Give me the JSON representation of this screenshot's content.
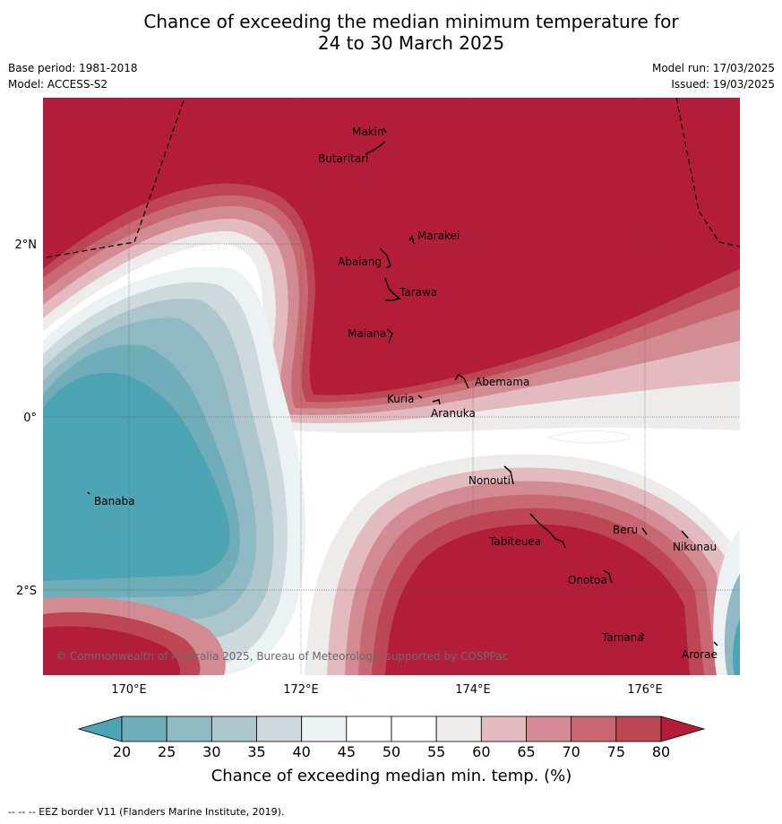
{
  "title_line1": "Chance of exceeding the median minimum temperature for",
  "title_line2": "24 to 30 March 2025",
  "meta_left": {
    "base_period": "Base period: 1981-2018",
    "model": "Model: ACCESS-S2"
  },
  "meta_right": {
    "model_run": "Model run: 17/03/2025",
    "issued": "Issued: 19/03/2025"
  },
  "axes": {
    "lat_labels": [
      "2°N",
      "0°",
      "2°S"
    ],
    "lon_labels": [
      "170°E",
      "172°E",
      "174°E",
      "176°E"
    ]
  },
  "islands": [
    {
      "name": "Makin"
    },
    {
      "name": "Butaritari"
    },
    {
      "name": "Marakei"
    },
    {
      "name": "Abaiang"
    },
    {
      "name": "Tarawa"
    },
    {
      "name": "Maiana"
    },
    {
      "name": "Abemama"
    },
    {
      "name": "Kuria"
    },
    {
      "name": "Aranuka"
    },
    {
      "name": "Nonouti"
    },
    {
      "name": "Banaba"
    },
    {
      "name": "Tabiteuea"
    },
    {
      "name": "Beru"
    },
    {
      "name": "Nikunau"
    },
    {
      "name": "Onotoa"
    },
    {
      "name": "Tamana"
    },
    {
      "name": "Arorae"
    }
  ],
  "copyright": "© Commonwealth of Australia 2025, Bureau of Meteorology, supported by COSPPac",
  "colorbar": {
    "ticks": [
      "20",
      "25",
      "30",
      "35",
      "40",
      "45",
      "50",
      "55",
      "60",
      "65",
      "70",
      "75",
      "80"
    ],
    "colors": [
      "#6fadb9",
      "#8fbac4",
      "#acc6cc",
      "#cdd9dd",
      "#ecf1f3",
      "#ffffff",
      "#ffffff",
      "#eeebeb",
      "#e2babf",
      "#d38b93",
      "#c86872",
      "#be4554"
    ],
    "low_color": "#4da4b4",
    "high_color": "#b31d3a",
    "label": "Chance of exceeding median min. temp. (%)"
  },
  "footer": "--  --  -- EEZ border V11 (Flanders Marine Institute, 2019)."
}
